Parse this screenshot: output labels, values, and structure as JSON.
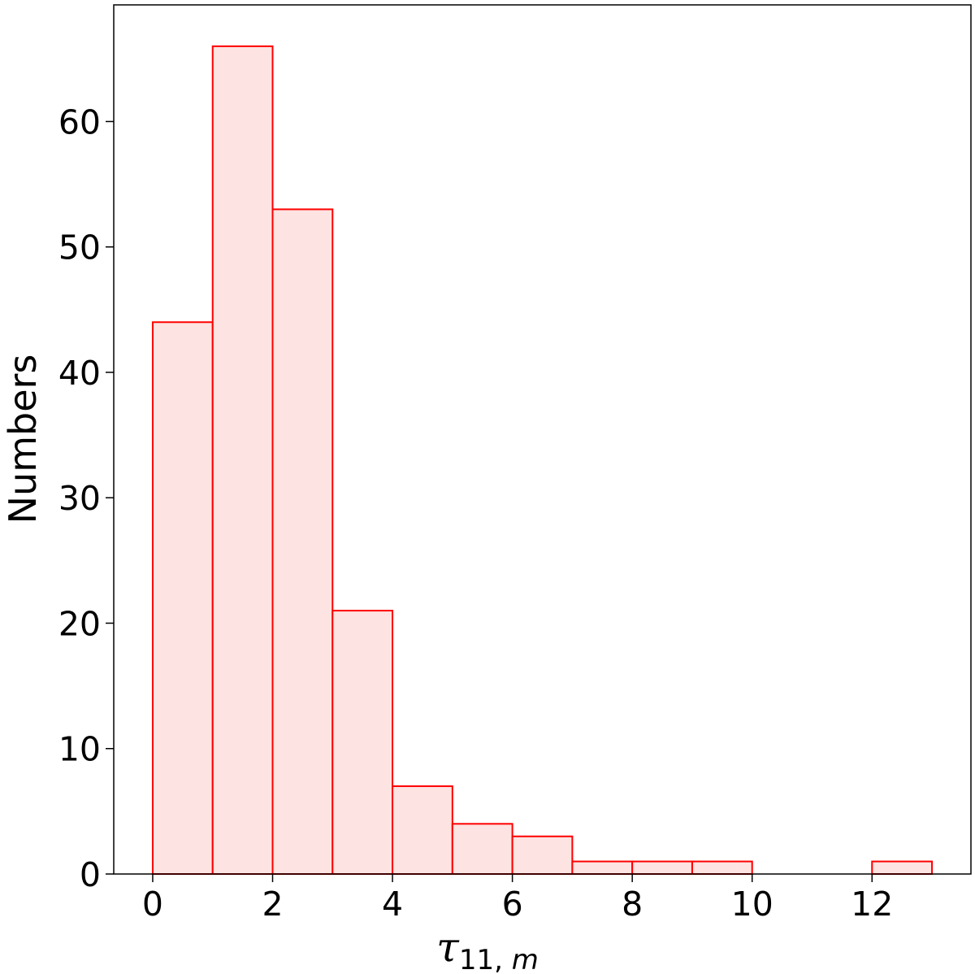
{
  "chart_data": {
    "type": "bar",
    "histogram": true,
    "bin_edges": [
      0,
      1,
      2,
      3,
      4,
      5,
      6,
      7,
      8,
      9,
      10,
      11,
      12,
      13
    ],
    "values": [
      44,
      66,
      53,
      21,
      7,
      4,
      3,
      1,
      1,
      1,
      0,
      0,
      1
    ],
    "xlabel": {
      "symbol": "τ",
      "subscript_plain": "11,",
      "subscript_italic": " m"
    },
    "ylabel": "Numbers",
    "xlim": [
      -0.65,
      13.65
    ],
    "ylim": [
      0,
      69.3
    ],
    "x_ticks": [
      0,
      2,
      4,
      6,
      8,
      10,
      12
    ],
    "y_ticks": [
      0,
      10,
      20,
      30,
      40,
      50,
      60
    ],
    "bar_fill_color": "#fde3e1",
    "bar_edge_color": "#ff0000",
    "grid": false,
    "legend": "none"
  }
}
